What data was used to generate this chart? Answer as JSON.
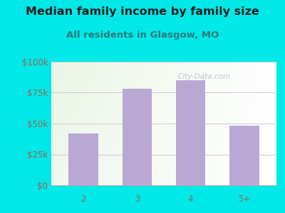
{
  "categories": [
    "2",
    "3",
    "4",
    "5+"
  ],
  "values": [
    42000,
    78000,
    85000,
    48000
  ],
  "bar_color": "#b9a8d4",
  "title": "Median family income by family size",
  "subtitle": "All residents in Glasgow, MO",
  "title_fontsize": 11.5,
  "subtitle_fontsize": 9.5,
  "title_color": "#222222",
  "subtitle_color": "#2a7a7a",
  "outer_bg_color": "#00e8e8",
  "ytick_labels": [
    "$0",
    "$25k",
    "$50k",
    "$75k",
    "$100k"
  ],
  "ytick_values": [
    0,
    25000,
    50000,
    75000,
    100000
  ],
  "ylim": [
    0,
    100000
  ],
  "tick_color": "#996655",
  "axis_label_fontsize": 8.5,
  "watermark": "City-Data.com"
}
